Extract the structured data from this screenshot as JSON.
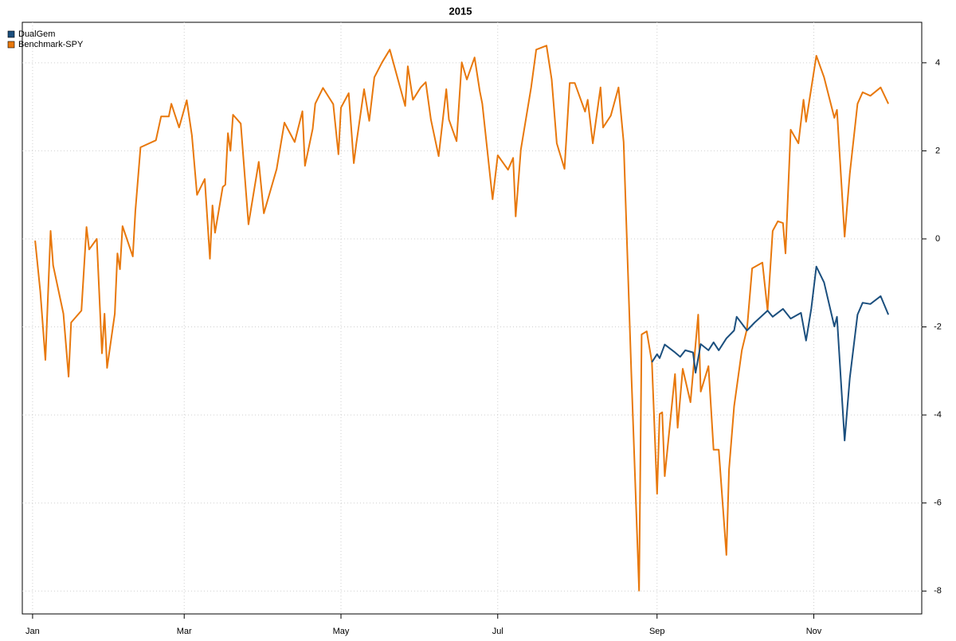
{
  "chart_data": {
    "type": "line",
    "title": "2015",
    "xlim": [
      -4,
      346
    ],
    "xticks": [
      {
        "value": 0,
        "label": "Jan"
      },
      {
        "value": 59,
        "label": "Mar"
      },
      {
        "value": 120,
        "label": "May"
      },
      {
        "value": 181,
        "label": "Jul"
      },
      {
        "value": 243,
        "label": "Sep"
      },
      {
        "value": 304,
        "label": "Nov"
      }
    ],
    "ylim": [
      -8.52,
      4.92
    ],
    "yticks": [
      -8,
      -6,
      -4,
      -2,
      0,
      2,
      4
    ],
    "grid": true,
    "legend": "top-left",
    "series": [
      {
        "name": "DualGem",
        "color": "#1b4f7e",
        "x": [
          241,
          243,
          244,
          246,
          250,
          252,
          254,
          257,
          258,
          260,
          263,
          265,
          267,
          270,
          273,
          274,
          278,
          281,
          286,
          288,
          292,
          295,
          299,
          301,
          303,
          305,
          308,
          312,
          313,
          316,
          318,
          321,
          323,
          326,
          330,
          333
        ],
        "values": [
          -2.8,
          -2.62,
          -2.71,
          -2.4,
          -2.58,
          -2.68,
          -2.53,
          -2.58,
          -3.04,
          -2.39,
          -2.53,
          -2.35,
          -2.53,
          -2.26,
          -2.08,
          -1.77,
          -2.08,
          -1.9,
          -1.63,
          -1.77,
          -1.59,
          -1.81,
          -1.68,
          -2.31,
          -1.59,
          -0.63,
          -0.99,
          -1.99,
          -1.77,
          -4.58,
          -3.16,
          -1.72,
          -1.45,
          -1.48,
          -1.3,
          -1.72
        ]
      },
      {
        "name": "Benchmark-SPY",
        "color": "#e8780c",
        "x": [
          1,
          3,
          5,
          7,
          8,
          12,
          14,
          15,
          19,
          21,
          22,
          25,
          27,
          28,
          29,
          32,
          33,
          34,
          35,
          39,
          40,
          42,
          48,
          50,
          53,
          54,
          55,
          57,
          60,
          62,
          64,
          67,
          69,
          70,
          71,
          74,
          75,
          76,
          77,
          78,
          81,
          84,
          88,
          90,
          95,
          98,
          102,
          105,
          106,
          109,
          110,
          113,
          117,
          119,
          120,
          123,
          125,
          126,
          129,
          131,
          133,
          136,
          139,
          145,
          146,
          148,
          151,
          153,
          155,
          158,
          161,
          162,
          165,
          167,
          169,
          172,
          174,
          175,
          179,
          181,
          185,
          187,
          188,
          190,
          194,
          196,
          200,
          202,
          204,
          207,
          209,
          211,
          215,
          216,
          218,
          221,
          222,
          225,
          228,
          230,
          233,
          236,
          237,
          239,
          241,
          243,
          244,
          245,
          246,
          250,
          251,
          253,
          256,
          259,
          260,
          263,
          265,
          267,
          270,
          271,
          273,
          276,
          278,
          280,
          284,
          286,
          288,
          290,
          292,
          293,
          295,
          298,
          300,
          301,
          305,
          308,
          312,
          313,
          316,
          318,
          321,
          323,
          326,
          330,
          333
        ],
        "values": [
          -0.04,
          -1.2,
          -2.75,
          0.18,
          -0.6,
          -1.7,
          -3.13,
          -1.9,
          -1.63,
          0.27,
          -0.24,
          0,
          -2.6,
          -1.7,
          -2.93,
          -1.7,
          -0.33,
          -0.69,
          0.29,
          -0.4,
          0.63,
          2.08,
          2.24,
          2.78,
          2.78,
          3.07,
          2.89,
          2.53,
          3.15,
          2.35,
          1.0,
          1.36,
          -0.45,
          0.76,
          0.14,
          1.18,
          1.23,
          2.4,
          2.0,
          2.82,
          2.62,
          0.33,
          1.75,
          0.58,
          1.59,
          2.64,
          2.2,
          2.9,
          1.66,
          2.5,
          3.07,
          3.43,
          3.06,
          1.92,
          2.98,
          3.31,
          1.72,
          2.17,
          3.4,
          2.68,
          3.67,
          4.01,
          4.3,
          3.02,
          3.92,
          3.16,
          3.44,
          3.56,
          2.71,
          1.88,
          3.4,
          2.71,
          2.22,
          4.01,
          3.62,
          4.12,
          3.36,
          3.07,
          0.9,
          1.9,
          1.57,
          1.84,
          0.51,
          2.03,
          3.44,
          4.3,
          4.39,
          3.62,
          2.17,
          1.59,
          3.54,
          3.54,
          2.89,
          3.16,
          2.17,
          3.44,
          2.53,
          2.8,
          3.44,
          2.2,
          -3.07,
          -7.99,
          -2.17,
          -2.1,
          -2.8,
          -5.79,
          -3.98,
          -3.94,
          -5.39,
          -3.07,
          -4.29,
          -2.95,
          -3.71,
          -1.72,
          -3.47,
          -2.89,
          -4.79,
          -4.79,
          -7.18,
          -5.24,
          -3.8,
          -2.53,
          -2.04,
          -0.67,
          -0.54,
          -1.63,
          0.18,
          0.4,
          0.36,
          -0.33,
          2.48,
          2.17,
          3.16,
          2.66,
          4.16,
          3.67,
          2.75,
          2.93,
          0.05,
          1.48,
          3.07,
          3.33,
          3.25,
          3.44,
          3.07
        ]
      }
    ]
  }
}
